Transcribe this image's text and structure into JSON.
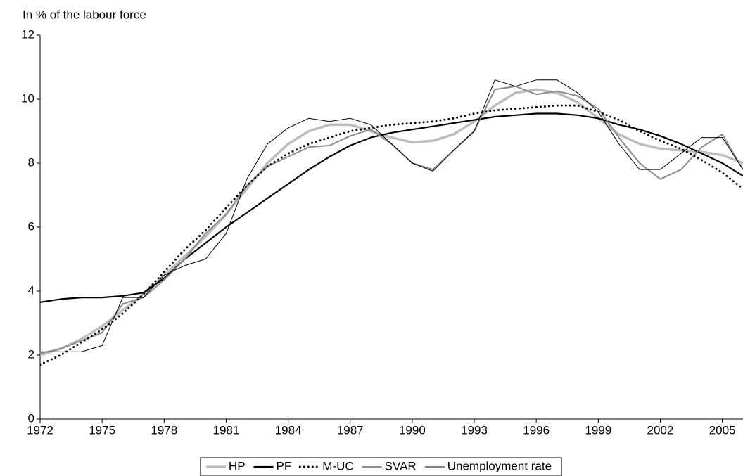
{
  "chart_data": {
    "type": "line",
    "y_label": "In % of the labour force",
    "x": [
      1972,
      1973,
      1974,
      1975,
      1976,
      1977,
      1978,
      1979,
      1980,
      1981,
      1982,
      1983,
      1984,
      1985,
      1986,
      1987,
      1988,
      1989,
      1990,
      1991,
      1992,
      1993,
      1994,
      1995,
      1996,
      1997,
      1998,
      1999,
      2000,
      2001,
      2002,
      2003,
      2004,
      2005,
      2006
    ],
    "xlim": [
      1972,
      2006
    ],
    "xticks": [
      1972,
      1975,
      1978,
      1981,
      1984,
      1987,
      1990,
      1993,
      1996,
      1999,
      2002,
      2005
    ],
    "ylim": [
      0,
      12
    ],
    "yticks": [
      0,
      2,
      4,
      6,
      8,
      10,
      12
    ],
    "grid": false,
    "legend": "bottom",
    "series": [
      {
        "name": "HP",
        "color": "#bdbdbd",
        "width": 3.5,
        "values": [
          2.0,
          2.2,
          2.5,
          2.9,
          3.4,
          3.9,
          4.5,
          5.1,
          5.7,
          6.4,
          7.2,
          8.0,
          8.6,
          9.0,
          9.2,
          9.2,
          9.0,
          8.8,
          8.65,
          8.7,
          8.9,
          9.3,
          9.8,
          10.2,
          10.3,
          10.2,
          9.9,
          9.4,
          8.9,
          8.6,
          8.45,
          8.4,
          8.35,
          8.25,
          8.0
        ]
      },
      {
        "name": "PF",
        "color": "#000000",
        "width": 2.2,
        "values": [
          3.65,
          3.75,
          3.8,
          3.8,
          3.85,
          3.95,
          4.4,
          5.0,
          5.5,
          6.0,
          6.45,
          6.9,
          7.35,
          7.8,
          8.2,
          8.55,
          8.8,
          8.95,
          9.05,
          9.15,
          9.25,
          9.35,
          9.45,
          9.5,
          9.55,
          9.55,
          9.5,
          9.4,
          9.2,
          9.05,
          8.85,
          8.6,
          8.3,
          8.0,
          7.6
        ]
      },
      {
        "name": "M-UC",
        "color": "#000000",
        "width": 3,
        "style": "dotted",
        "values": [
          1.7,
          2.0,
          2.4,
          2.8,
          3.3,
          3.9,
          4.6,
          5.3,
          5.9,
          6.6,
          7.3,
          7.9,
          8.3,
          8.6,
          8.8,
          9.0,
          9.1,
          9.2,
          9.25,
          9.3,
          9.4,
          9.55,
          9.65,
          9.7,
          9.75,
          9.8,
          9.8,
          9.6,
          9.35,
          9.0,
          8.7,
          8.45,
          8.1,
          7.7,
          7.2
        ]
      },
      {
        "name": "SVAR",
        "color": "#8c8c8c",
        "width": 2,
        "values": [
          2.05,
          2.2,
          2.45,
          2.7,
          3.6,
          3.8,
          4.35,
          5.0,
          5.8,
          6.4,
          7.3,
          7.9,
          8.2,
          8.5,
          8.55,
          8.85,
          9.05,
          8.6,
          8.0,
          7.8,
          8.4,
          9.0,
          10.3,
          10.4,
          10.15,
          10.25,
          10.1,
          9.7,
          8.8,
          8.0,
          7.5,
          7.8,
          8.5,
          8.9,
          7.8
        ]
      },
      {
        "name": "Unemployment rate",
        "color": "#000000",
        "width": 1,
        "values": [
          2.1,
          2.1,
          2.1,
          2.3,
          3.8,
          3.8,
          4.5,
          4.8,
          5.0,
          5.8,
          7.5,
          8.6,
          9.1,
          9.4,
          9.3,
          9.4,
          9.2,
          8.6,
          8.0,
          7.75,
          8.4,
          9.0,
          10.6,
          10.4,
          10.6,
          10.6,
          10.2,
          9.6,
          8.6,
          7.8,
          7.8,
          8.3,
          8.8,
          8.8,
          7.8
        ]
      }
    ]
  }
}
